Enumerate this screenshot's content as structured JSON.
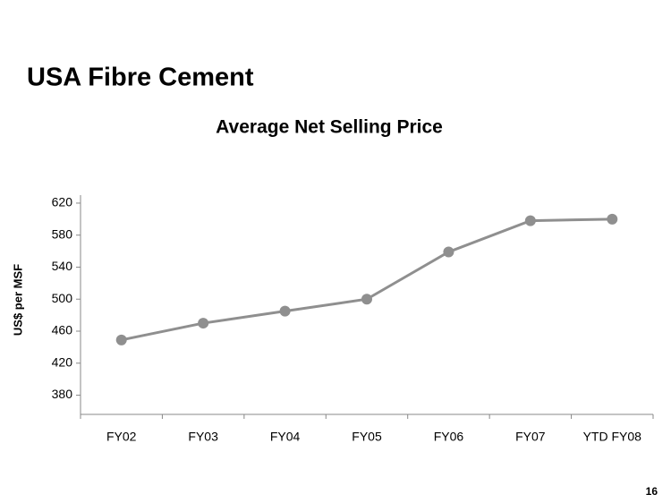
{
  "slide_title": "USA Fibre Cement",
  "page_number": "16",
  "chart_data": {
    "type": "line",
    "title": "Average Net Selling Price",
    "y_label": "US$ per MSF",
    "categories": [
      "FY02",
      "FY03",
      "FY04",
      "FY05",
      "FY06",
      "FY07",
      "YTD FY08"
    ],
    "values": [
      449,
      470,
      485,
      500,
      559,
      598,
      600
    ],
    "color": "#8f8f8f",
    "ylim": [
      356,
      630
    ],
    "yticks": [
      380,
      420,
      460,
      500,
      540,
      580,
      620
    ],
    "grid": false
  }
}
